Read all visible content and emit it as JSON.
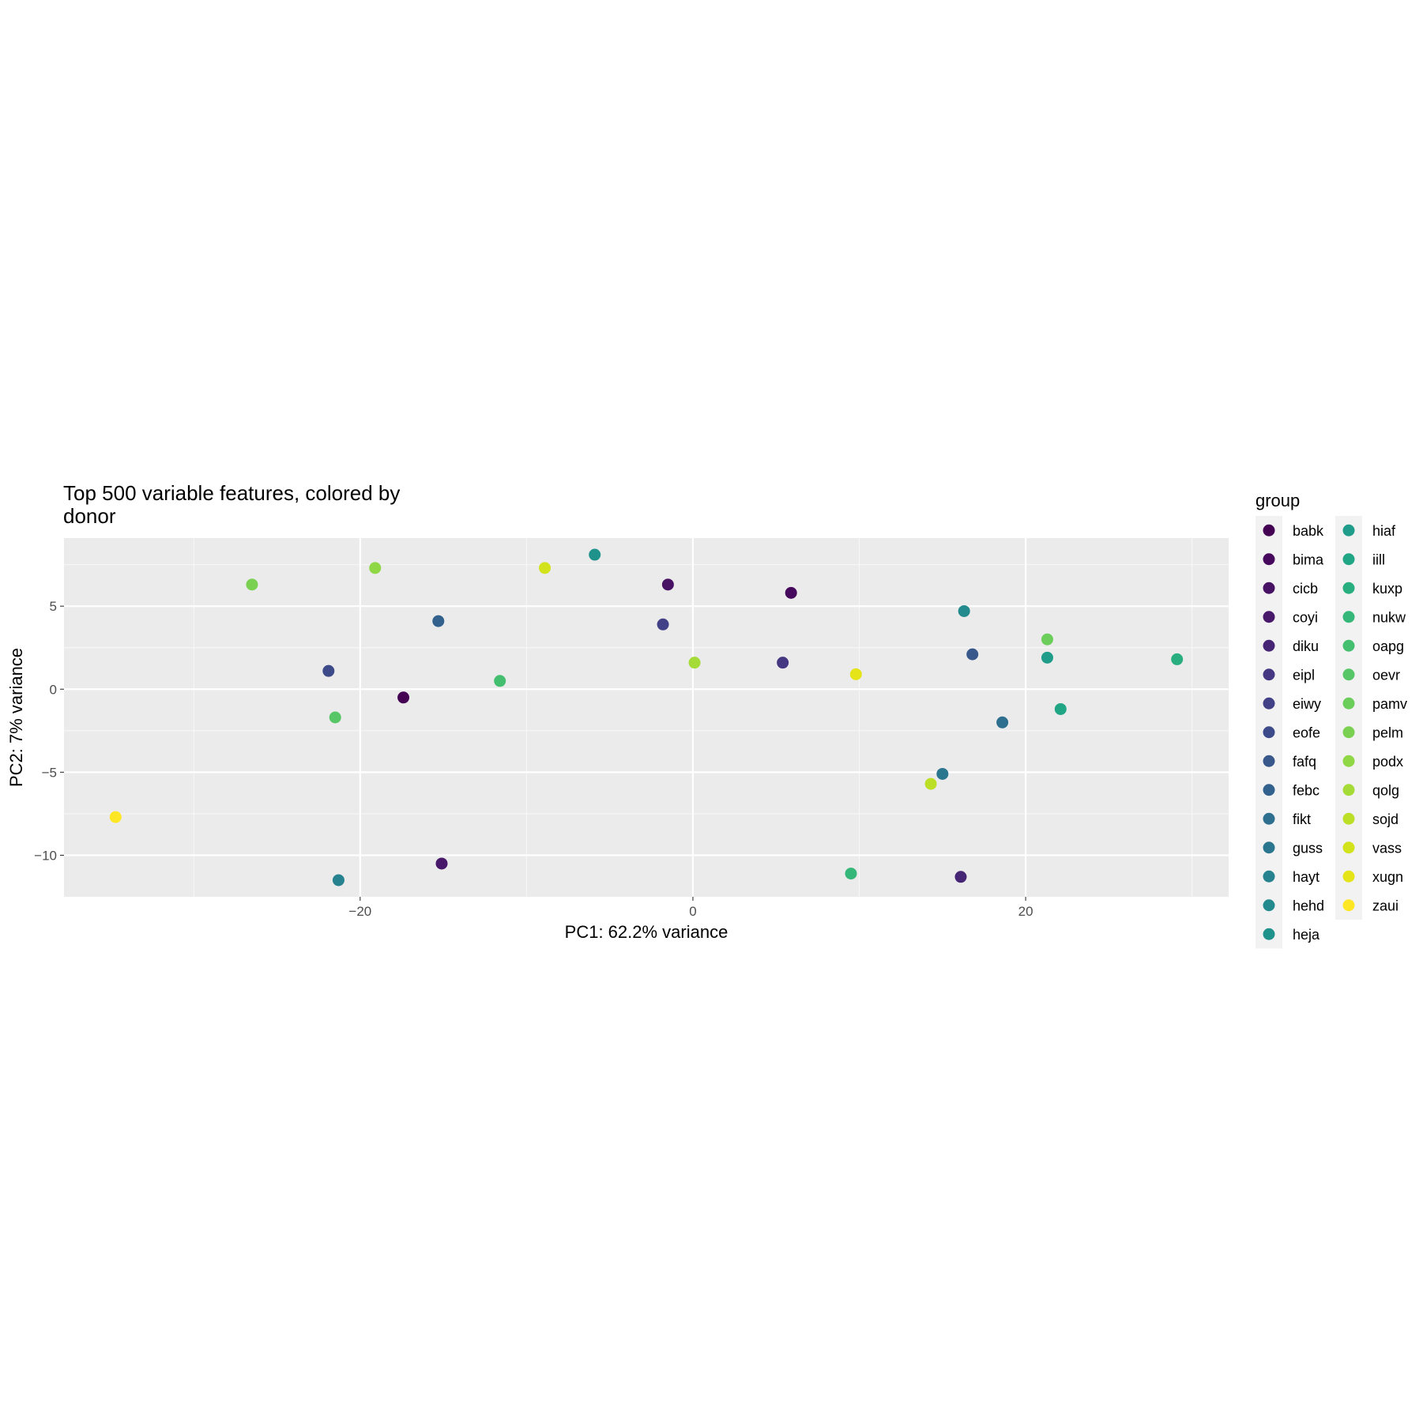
{
  "chart_data": {
    "type": "scatter",
    "title_lines": [
      "Top 500 variable features, colored by",
      "donor"
    ],
    "xlabel": "PC1: 62.2% variance",
    "ylabel": "PC2: 7% variance",
    "xlim": [
      -37.8,
      32.2
    ],
    "ylim": [
      -12.5,
      9.1
    ],
    "x_ticks": [
      -20,
      0,
      20
    ],
    "x_tick_labels": [
      "−20",
      "0",
      "20"
    ],
    "y_ticks": [
      -10,
      -5,
      0,
      5
    ],
    "y_tick_labels": [
      "−10",
      "−5",
      "0",
      "5"
    ],
    "x_minor": [
      -30,
      -10,
      10,
      30
    ],
    "y_minor": [
      -7.5,
      -2.5,
      2.5,
      7.5
    ],
    "grid": true,
    "legend_position": "right",
    "legend_title": "group",
    "series": [
      {
        "name": "babk",
        "color": "#440154",
        "points": [
          [
            -17.4,
            -0.5
          ]
        ]
      },
      {
        "name": "bima",
        "color": "#46085C",
        "points": [
          [
            5.9,
            5.8
          ]
        ]
      },
      {
        "name": "cicb",
        "color": "#471164",
        "points": [
          [
            -1.5,
            6.3
          ]
        ]
      },
      {
        "name": "coyi",
        "color": "#48186A",
        "points": [
          [
            -15.1,
            -10.5
          ]
        ]
      },
      {
        "name": "diku",
        "color": "#472575",
        "points": [
          [
            16.1,
            -11.3
          ]
        ]
      },
      {
        "name": "eipl",
        "color": "#453781",
        "points": [
          [
            5.4,
            1.6
          ]
        ]
      },
      {
        "name": "eiwy",
        "color": "#424086",
        "points": [
          [
            -1.8,
            3.9
          ]
        ]
      },
      {
        "name": "eofe",
        "color": "#3D4A8A",
        "points": [
          [
            -21.9,
            1.1
          ]
        ]
      },
      {
        "name": "fafq",
        "color": "#38588C",
        "points": [
          [
            16.8,
            2.1
          ]
        ]
      },
      {
        "name": "febc",
        "color": "#33618D",
        "points": [
          [
            -15.3,
            4.1
          ]
        ]
      },
      {
        "name": "fikt",
        "color": "#2E6E8E",
        "points": [
          [
            18.6,
            -2.0
          ]
        ]
      },
      {
        "name": "guss",
        "color": "#2A768E",
        "points": [
          [
            15.0,
            -5.1
          ]
        ]
      },
      {
        "name": "hayt",
        "color": "#26828E",
        "points": [
          [
            -21.3,
            -11.5
          ]
        ]
      },
      {
        "name": "hehd",
        "color": "#238A8D",
        "points": [
          [
            16.3,
            4.7
          ]
        ]
      },
      {
        "name": "heja",
        "color": "#20928C",
        "points": [
          [
            -5.9,
            8.1
          ]
        ]
      },
      {
        "name": "hiaf",
        "color": "#1F9D8A",
        "points": [
          [
            21.3,
            1.9
          ]
        ]
      },
      {
        "name": "iill",
        "color": "#21A685",
        "points": [
          [
            22.1,
            -1.2
          ]
        ]
      },
      {
        "name": "kuxp",
        "color": "#29AF7F",
        "points": [
          [
            29.1,
            1.8
          ]
        ]
      },
      {
        "name": "nukw",
        "color": "#35B779",
        "points": [
          [
            9.5,
            -11.1
          ]
        ]
      },
      {
        "name": "oapg",
        "color": "#44BF70",
        "points": [
          [
            -11.6,
            0.5
          ]
        ]
      },
      {
        "name": "oevr",
        "color": "#56C667",
        "points": [
          [
            -21.5,
            -1.7
          ]
        ]
      },
      {
        "name": "pamv",
        "color": "#6BCD5A",
        "points": [
          [
            21.3,
            3.0
          ]
        ]
      },
      {
        "name": "pelm",
        "color": "#7AD151",
        "points": [
          [
            -26.5,
            6.3
          ]
        ]
      },
      {
        "name": "podx",
        "color": "#8FD744",
        "points": [
          [
            -19.1,
            7.3
          ]
        ]
      },
      {
        "name": "qolg",
        "color": "#A5DB36",
        "points": [
          [
            0.1,
            1.6
          ]
        ]
      },
      {
        "name": "sojd",
        "color": "#BBDF27",
        "points": [
          [
            14.3,
            -5.7
          ]
        ]
      },
      {
        "name": "vass",
        "color": "#D2E21B",
        "points": [
          [
            -8.9,
            7.3
          ]
        ]
      },
      {
        "name": "xugn",
        "color": "#E4E419",
        "points": [
          [
            9.8,
            0.9
          ]
        ]
      },
      {
        "name": "zaui",
        "color": "#FDE725",
        "points": [
          [
            -34.7,
            -7.7
          ]
        ]
      }
    ]
  }
}
